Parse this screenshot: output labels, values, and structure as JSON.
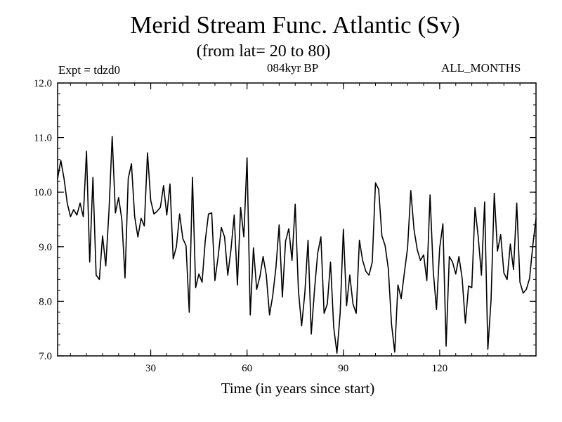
{
  "chart_data": {
    "type": "line",
    "title": "Merid Stream Func. Atlantic (Sv)",
    "subtitle": "(from lat= 20 to 80)",
    "experiment": "Expt = tdzd0",
    "period": "084kyr BP",
    "months": "ALL_MONTHS",
    "xlabel": "Time (in years since start)",
    "ylabel": "",
    "xlim": [
      1,
      150
    ],
    "ylim": [
      7.0,
      12.0
    ],
    "x_ticks": [
      30,
      60,
      90,
      120
    ],
    "x_tick_labels": [
      "30",
      "60",
      "90",
      "120"
    ],
    "y_ticks": [
      7.0,
      8.0,
      9.0,
      10.0,
      11.0,
      12.0
    ],
    "y_tick_labels": [
      "7.0",
      "8.0",
      "9.0",
      "10.0",
      "11.0",
      "12.0"
    ],
    "grid": false,
    "series": [
      {
        "name": "Merid Stream Func. Atlantic",
        "x_start": 1,
        "x_step": 1,
        "values": [
          10.25,
          10.58,
          10.25,
          9.8,
          9.55,
          9.68,
          9.58,
          9.8,
          9.55,
          10.75,
          8.72,
          10.27,
          8.48,
          8.4,
          9.2,
          8.65,
          9.65,
          11.02,
          9.62,
          9.9,
          9.5,
          8.43,
          10.25,
          10.52,
          9.55,
          9.18,
          9.52,
          9.38,
          10.72,
          9.85,
          9.6,
          9.65,
          9.72,
          10.12,
          9.58,
          10.15,
          8.78,
          9.0,
          9.6,
          9.15,
          9.02,
          7.8,
          10.27,
          8.25,
          8.5,
          8.35,
          9.12,
          9.6,
          9.62,
          8.38,
          8.82,
          9.35,
          9.18,
          8.48,
          8.95,
          9.58,
          8.3,
          9.72,
          9.18,
          10.63,
          7.75,
          8.98,
          8.22,
          8.45,
          8.82,
          8.48,
          7.75,
          8.1,
          8.62,
          9.4,
          8.08,
          9.1,
          9.33,
          8.75,
          9.78,
          8.2,
          7.55,
          8.15,
          9.12,
          7.4,
          8.2,
          8.88,
          9.18,
          7.78,
          7.95,
          8.72,
          7.52,
          7.05,
          7.78,
          9.32,
          7.92,
          8.48,
          7.95,
          7.78,
          9.12,
          8.75,
          8.55,
          8.48,
          8.72,
          10.17,
          10.05,
          9.2,
          9.02,
          8.6,
          7.58,
          7.07,
          8.3,
          8.05,
          8.52,
          8.98,
          10.03,
          9.32,
          8.95,
          8.75,
          8.85,
          8.38,
          9.95,
          8.55,
          7.85,
          8.98,
          9.42,
          7.18,
          8.82,
          8.72,
          8.5,
          8.82,
          8.42,
          7.6,
          8.28,
          8.25,
          9.72,
          9.18,
          8.48,
          9.82,
          7.12,
          8.02,
          9.98,
          8.92,
          9.22,
          8.52,
          8.4,
          9.05,
          8.58,
          9.8,
          8.35,
          8.15,
          8.22,
          8.42,
          9.02,
          9.52
        ]
      }
    ]
  }
}
